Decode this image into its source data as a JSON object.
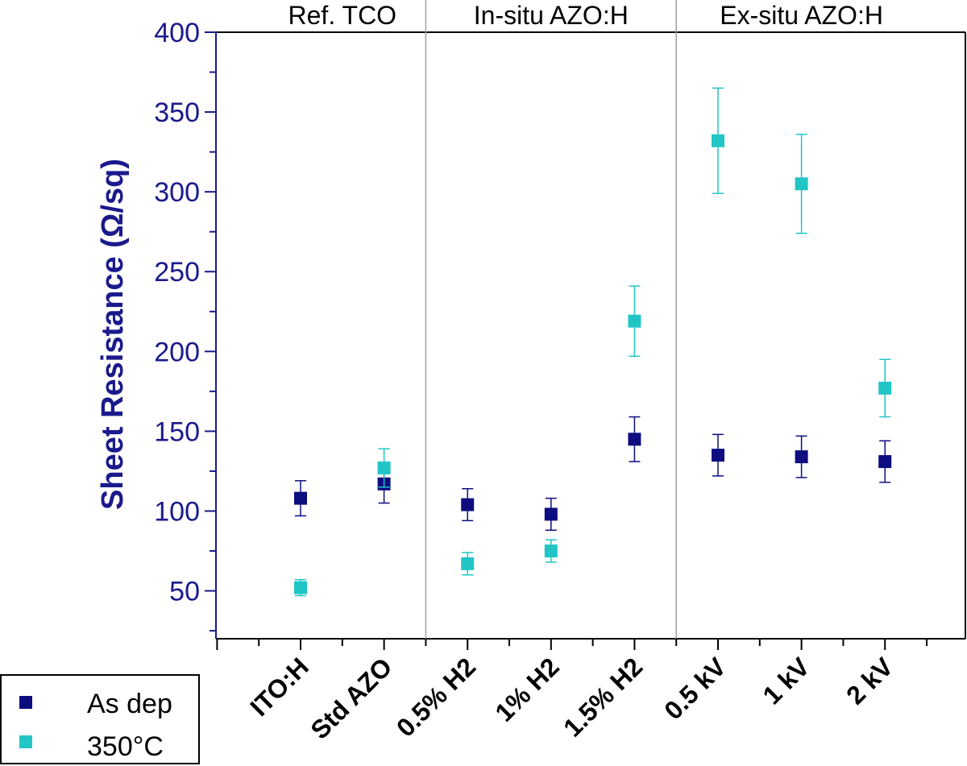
{
  "chart_data": {
    "type": "scatter",
    "title": "",
    "xlabel": "",
    "ylabel": "Sheet Resistance (Ω/sq)",
    "ylim": [
      20,
      400
    ],
    "yticks": [
      50,
      100,
      150,
      200,
      250,
      300,
      350,
      400
    ],
    "categories": [
      "ITO:H",
      "Std AZO",
      "0.5% H2",
      "1% H2",
      "1.5% H2",
      "0.5 kV",
      "1 kV",
      "2 kV"
    ],
    "groups": [
      {
        "label": "Ref. TCO",
        "categories": [
          "ITO:H",
          "Std AZO"
        ]
      },
      {
        "label": "In-situ AZO:H",
        "categories": [
          "0.5% H2",
          "1% H2",
          "1.5% H2"
        ]
      },
      {
        "label": "Ex-situ AZO:H",
        "categories": [
          "0.5 kV",
          "1 kV",
          "2 kV"
        ]
      }
    ],
    "series": [
      {
        "name": "As dep",
        "color": "#0d0d80",
        "values": [
          108,
          117,
          104,
          98,
          145,
          135,
          134,
          131
        ],
        "errors": [
          11,
          12,
          10,
          10,
          14,
          13,
          13,
          13
        ]
      },
      {
        "name": "350°C",
        "color": "#22c5c5",
        "values": [
          52,
          127,
          67,
          75,
          219,
          332,
          305,
          177
        ],
        "errors": [
          5,
          12,
          7,
          7,
          22,
          33,
          31,
          18
        ]
      }
    ],
    "legend": {
      "position": "bottom-left",
      "entries": [
        "As dep",
        "350°C"
      ]
    }
  }
}
